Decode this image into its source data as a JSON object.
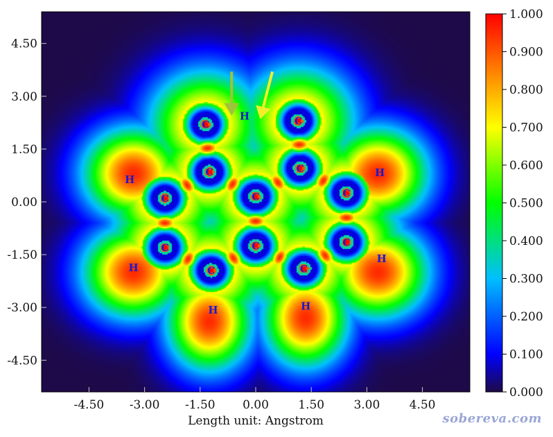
{
  "chart_data": {
    "type": "heatmap",
    "xlabel": "Length unit: Angstrom",
    "x_ticks": [
      "-4.50",
      "-3.00",
      "-1.50",
      "0.00",
      "1.50",
      "3.00",
      "4.50"
    ],
    "y_ticks": [
      "4.50",
      "3.00",
      "1.50",
      "0.00",
      "-1.50",
      "-3.00",
      "-4.50"
    ],
    "x_tick_values": [
      -4.5,
      -3.0,
      -1.5,
      0.0,
      1.5,
      3.0,
      4.5
    ],
    "y_tick_values": [
      4.5,
      3.0,
      1.5,
      0.0,
      -1.5,
      -3.0,
      -4.5
    ],
    "xlim": [
      -5.78,
      5.78
    ],
    "ylim": [
      -5.4,
      5.4
    ],
    "colorbar": {
      "ticks": [
        "1.000",
        "0.900",
        "0.800",
        "0.700",
        "0.600",
        "0.500",
        "0.400",
        "0.300",
        "0.200",
        "0.100",
        "0.000"
      ],
      "tick_values": [
        1.0,
        0.9,
        0.8,
        0.7,
        0.6,
        0.5,
        0.4,
        0.3,
        0.2,
        0.1,
        0.0
      ],
      "range": [
        0.0,
        1.0
      ],
      "colors": [
        "#1e0a48",
        "#0000ff",
        "#00bfff",
        "#00ff00",
        "#ffff00",
        "#ff8000",
        "#ff0000"
      ]
    },
    "atoms": [
      {
        "label": "C",
        "x": -1.25,
        "y": 0.85
      },
      {
        "label": "C",
        "x": 0.0,
        "y": 0.15
      },
      {
        "label": "C",
        "x": 1.2,
        "y": 0.95
      },
      {
        "label": "C",
        "x": -2.45,
        "y": 0.1
      },
      {
        "label": "C",
        "x": 2.45,
        "y": 0.25
      },
      {
        "label": "C",
        "x": -2.45,
        "y": -1.3
      },
      {
        "label": "C",
        "x": 0.0,
        "y": -1.25
      },
      {
        "label": "C",
        "x": 2.45,
        "y": -1.15
      },
      {
        "label": "C",
        "x": -1.2,
        "y": -1.95
      },
      {
        "label": "C",
        "x": 1.3,
        "y": -1.9
      },
      {
        "label": "C",
        "x": -1.35,
        "y": 2.2
      },
      {
        "label": "C",
        "x": 1.15,
        "y": 2.3
      },
      {
        "label": "H",
        "x": -0.3,
        "y": 2.45
      },
      {
        "label": "H",
        "x": -3.4,
        "y": 0.65
      },
      {
        "label": "H",
        "x": 3.35,
        "y": 0.85
      },
      {
        "label": "H",
        "x": -3.3,
        "y": -1.85
      },
      {
        "label": "H",
        "x": 3.4,
        "y": -1.6
      },
      {
        "label": "H",
        "x": -1.15,
        "y": -3.05
      },
      {
        "label": "H",
        "x": 1.35,
        "y": -2.95
      }
    ],
    "arrows": [
      {
        "color": "#9fc43a",
        "from": [
          -0.65,
          3.7
        ],
        "to": [
          -0.65,
          2.45
        ]
      },
      {
        "color": "#f2ef2a",
        "from": [
          0.45,
          3.7
        ],
        "to": [
          0.12,
          2.35
        ]
      }
    ],
    "density_model": {
      "h_lobes": [
        {
          "x": -3.3,
          "y": 0.8,
          "sx": 0.92,
          "sy": 0.88,
          "a": 0.95
        },
        {
          "x": 3.3,
          "y": 0.8,
          "sx": 0.92,
          "sy": 0.88,
          "a": 0.95
        },
        {
          "x": -3.3,
          "y": -2.0,
          "sx": 0.92,
          "sy": 0.88,
          "a": 0.95
        },
        {
          "x": 3.3,
          "y": -2.0,
          "sx": 0.92,
          "sy": 0.88,
          "a": 0.95
        },
        {
          "x": -1.25,
          "y": -3.4,
          "sx": 0.78,
          "sy": 0.95,
          "a": 0.95
        },
        {
          "x": 1.35,
          "y": -3.3,
          "sx": 0.78,
          "sy": 0.95,
          "a": 0.95
        },
        {
          "x": -1.5,
          "y": 2.65,
          "sx": 0.75,
          "sy": 0.5,
          "a": 0.75
        },
        {
          "x": 1.4,
          "y": 2.65,
          "sx": 0.75,
          "sy": 0.5,
          "a": 0.75
        }
      ]
    }
  },
  "watermark": "sobereva.com"
}
